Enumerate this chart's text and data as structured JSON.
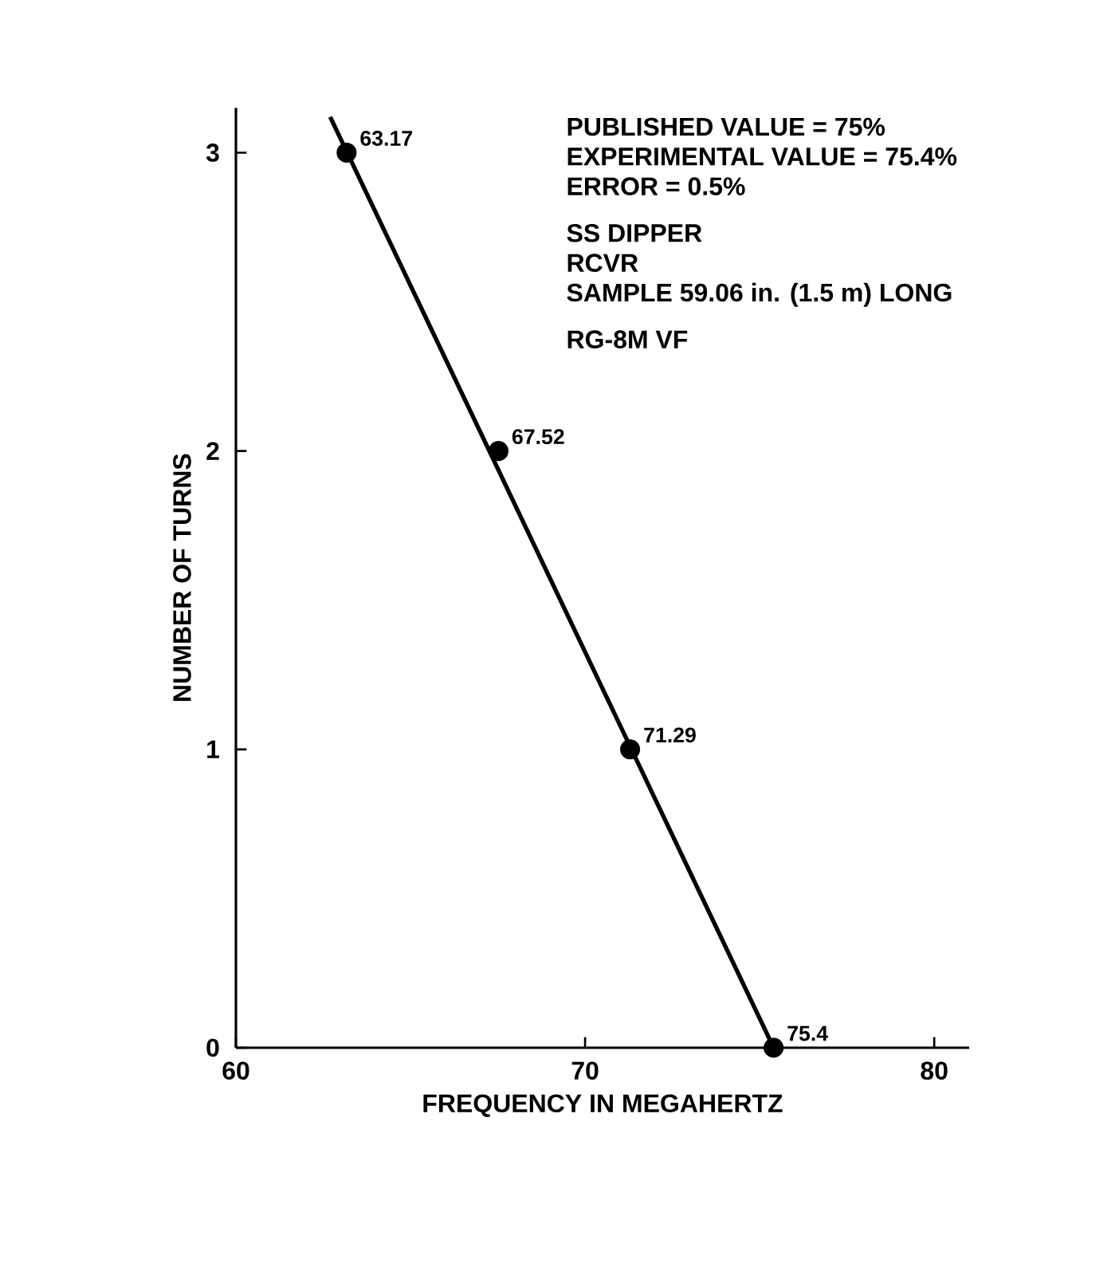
{
  "chart_data": {
    "type": "scatter",
    "xlabel": "FREQUENCY IN MEGAHERTZ",
    "ylabel": "NUMBER OF TURNS",
    "xlim": [
      60,
      81
    ],
    "ylim": [
      0,
      3.15
    ],
    "xticks": [
      60,
      70,
      80
    ],
    "yticks": [
      0,
      1,
      2,
      3
    ],
    "series": [
      {
        "type": "line",
        "color": "#000000",
        "x": [
          62.7,
          75.4
        ],
        "values": [
          3.12,
          0
        ],
        "marker": "none",
        "line_style": "solid"
      },
      {
        "type": "scatter",
        "color": "#000000",
        "x": [
          63.17,
          67.52,
          71.29,
          75.4
        ],
        "values": [
          3,
          2,
          1,
          0
        ],
        "marker": "circle"
      }
    ],
    "annotations": [
      "PUBLISHED VALUE = 75%",
      "EXPERIMENTAL VALUE = 75.4%",
      "ERROR = 0.5%",
      "SS DIPPER",
      "RCVR",
      "SAMPLE 59.06 in. (1.5 m) LONG",
      "RG-8M VF",
      {
        "text": "63.17",
        "x": 63.17,
        "y": 3
      },
      {
        "text": "67.52",
        "x": 67.52,
        "y": 2
      },
      {
        "text": "71.29",
        "x": 71.29,
        "y": 1
      },
      {
        "text": "75.4",
        "x": 75.4,
        "y": 0
      }
    ]
  }
}
